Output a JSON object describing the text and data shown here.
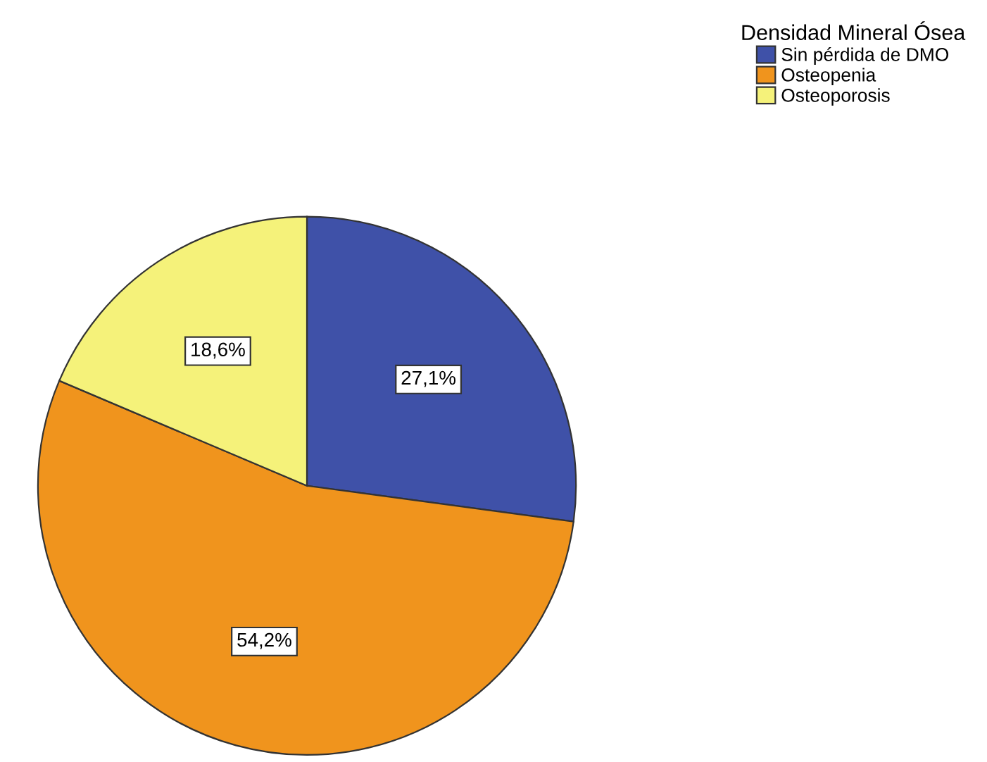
{
  "chart_data": {
    "type": "pie",
    "legend_title": "Densidad Mineral Ósea",
    "legend": "top right",
    "categories": [
      "Sin pérdida de DMO",
      "Osteopenia",
      "Osteoporosis"
    ],
    "values": [
      27.1,
      54.2,
      18.6
    ],
    "colors": [
      "#3f51a8",
      "#f0941d",
      "#f5f27a"
    ],
    "value_labels": [
      "27,1%",
      "54,2%",
      "18,6%"
    ]
  }
}
